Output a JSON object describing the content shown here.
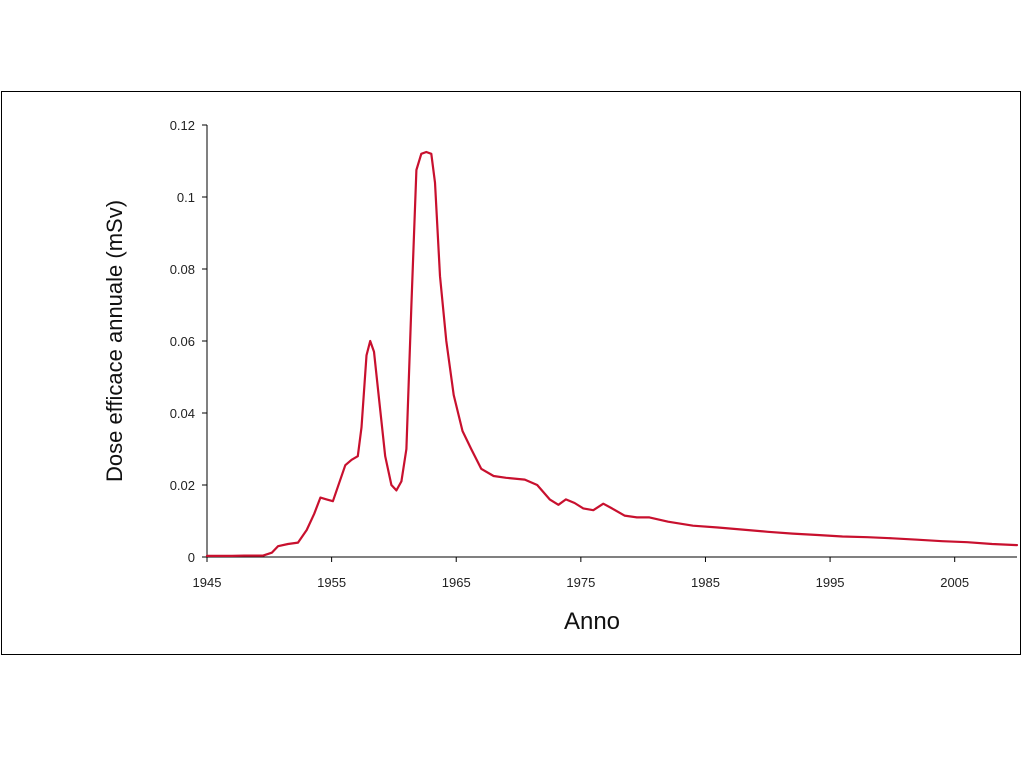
{
  "chart_data": {
    "type": "line",
    "title": "",
    "xlabel": "Anno",
    "ylabel": "Dose efficace annuale (mSv)",
    "xlim": [
      1945,
      2010
    ],
    "ylim": [
      0,
      0.12
    ],
    "x_ticks": [
      1945,
      1955,
      1965,
      1975,
      1985,
      1995,
      2005
    ],
    "y_ticks": [
      0,
      0.02,
      0.04,
      0.06,
      0.08,
      0.1,
      0.12
    ],
    "y_tick_labels": [
      "0",
      "0.02",
      "0.04",
      "0.06",
      "0.08",
      "0.1",
      "0.12"
    ],
    "grid": false,
    "legend": "none",
    "line_color": "#c8102e",
    "series": [
      {
        "points": [
          [
            1945,
            0.0003
          ],
          [
            1947,
            0.0003
          ],
          [
            1948,
            0.0004
          ],
          [
            1949.5,
            0.0004
          ],
          [
            1950.2,
            0.0012
          ],
          [
            1950.7,
            0.003
          ],
          [
            1951.5,
            0.0036
          ],
          [
            1952.3,
            0.004
          ],
          [
            1953,
            0.0075
          ],
          [
            1953.6,
            0.012
          ],
          [
            1954.1,
            0.0165
          ],
          [
            1954.6,
            0.016
          ],
          [
            1955.1,
            0.0155
          ],
          [
            1955.6,
            0.0205
          ],
          [
            1956.1,
            0.0255
          ],
          [
            1956.6,
            0.027
          ],
          [
            1957.1,
            0.028
          ],
          [
            1957.4,
            0.036
          ],
          [
            1957.8,
            0.056
          ],
          [
            1958.1,
            0.06
          ],
          [
            1958.4,
            0.057
          ],
          [
            1958.8,
            0.044
          ],
          [
            1959.3,
            0.028
          ],
          [
            1959.8,
            0.02
          ],
          [
            1960.2,
            0.0185
          ],
          [
            1960.6,
            0.021
          ],
          [
            1961,
            0.03
          ],
          [
            1961.4,
            0.07
          ],
          [
            1961.8,
            0.1075
          ],
          [
            1962.2,
            0.112
          ],
          [
            1962.6,
            0.1125
          ],
          [
            1963,
            0.112
          ],
          [
            1963.3,
            0.104
          ],
          [
            1963.7,
            0.078
          ],
          [
            1964.2,
            0.06
          ],
          [
            1964.8,
            0.045
          ],
          [
            1965.5,
            0.035
          ],
          [
            1966.2,
            0.03
          ],
          [
            1967,
            0.0245
          ],
          [
            1968,
            0.0225
          ],
          [
            1969,
            0.022
          ],
          [
            1970.5,
            0.0215
          ],
          [
            1971.5,
            0.02
          ],
          [
            1972.5,
            0.016
          ],
          [
            1973.2,
            0.0145
          ],
          [
            1973.8,
            0.016
          ],
          [
            1974.5,
            0.015
          ],
          [
            1975.2,
            0.0135
          ],
          [
            1976,
            0.013
          ],
          [
            1976.8,
            0.0148
          ],
          [
            1977.5,
            0.0135
          ],
          [
            1978.5,
            0.0115
          ],
          [
            1979.5,
            0.011
          ],
          [
            1980.5,
            0.011
          ],
          [
            1982,
            0.0098
          ],
          [
            1984,
            0.0087
          ],
          [
            1986,
            0.0082
          ],
          [
            1988,
            0.0076
          ],
          [
            1990,
            0.007
          ],
          [
            1992,
            0.0065
          ],
          [
            1994,
            0.0061
          ],
          [
            1996,
            0.0057
          ],
          [
            1998,
            0.0055
          ],
          [
            2000,
            0.0052
          ],
          [
            2002,
            0.0048
          ],
          [
            2004,
            0.0044
          ],
          [
            2006,
            0.0041
          ],
          [
            2008,
            0.0036
          ],
          [
            2010,
            0.0033
          ]
        ]
      }
    ]
  }
}
